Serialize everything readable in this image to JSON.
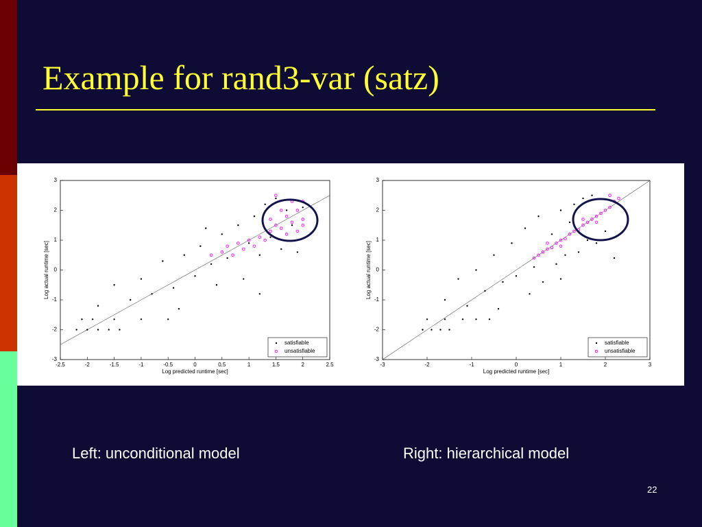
{
  "slide": {
    "title": "Example for rand3-var (satz)",
    "captions": [
      "Left: unconditional model",
      "Right: hierarchical model"
    ],
    "page_number": "22"
  },
  "chart_data": [
    {
      "type": "scatter",
      "xlabel": "Log predicted runtime [sec]",
      "ylabel": "Log actual runtime [sec]",
      "xlim": [
        -2.5,
        2.5
      ],
      "xticks": [
        -2.5,
        -2,
        -1.5,
        -1,
        -0.5,
        0,
        0.5,
        1,
        1.5,
        2,
        2.5
      ],
      "ylim": [
        -3,
        3
      ],
      "yticks": [
        -3,
        -2,
        -1,
        0,
        1,
        2,
        3
      ],
      "legend": "lower right",
      "series": [
        {
          "name": "satisfiable",
          "color": "#000000",
          "x": [
            -2.2,
            -2.0,
            -1.8,
            -1.6,
            -1.4,
            -2.1,
            -1.9,
            -1.5,
            -1.0,
            -0.5,
            -1.8,
            -1.5,
            -1.2,
            -1.0,
            -0.8,
            -0.6,
            -0.4,
            -0.2,
            0,
            0.1,
            0.3,
            0.4,
            0.5,
            0.6,
            0.8,
            0.9,
            1.0,
            1.1,
            1.2,
            1.3,
            1.4,
            1.5,
            1.6,
            1.7,
            1.8,
            1.9,
            2.0,
            1.2,
            -0.3,
            0.2
          ],
          "values": [
            -2,
            -2,
            -2,
            -2,
            -2,
            -1.65,
            -1.65,
            -1.65,
            -1.65,
            -1.65,
            -1.2,
            -0.5,
            -1.0,
            -0.3,
            -0.8,
            0.3,
            -0.6,
            0.5,
            -0.2,
            0.8,
            0.2,
            -0.5,
            1.2,
            0.4,
            1.5,
            -0.3,
            0.9,
            1.8,
            0.5,
            2.2,
            1.1,
            2.4,
            0.7,
            2.0,
            1.5,
            0.6,
            2.1,
            -0.8,
            -1.3,
            1.4
          ]
        },
        {
          "name": "unsatisfiable",
          "color": "#ff00ff",
          "x": [
            0.3,
            0.5,
            0.6,
            0.7,
            0.8,
            0.9,
            1.0,
            1.1,
            1.2,
            1.3,
            1.4,
            1.5,
            1.6,
            1.7,
            1.8,
            1.9,
            2.0,
            1.5,
            1.8,
            2.0,
            1.7,
            1.9,
            2.0,
            1.6,
            1.4
          ],
          "values": [
            0.5,
            0.6,
            0.8,
            0.5,
            0.9,
            0.7,
            1.0,
            0.8,
            1.1,
            1.0,
            1.3,
            1.5,
            1.4,
            1.8,
            1.6,
            2.0,
            1.7,
            2.5,
            2.3,
            2.3,
            1.2,
            1.3,
            1.5,
            2.0,
            1.7
          ]
        }
      ]
    },
    {
      "type": "scatter",
      "xlabel": "Log predicted runtime [sec]",
      "ylabel": "Log actual runtime [sec]",
      "xlim": [
        -3,
        3
      ],
      "xticks": [
        -3,
        -2,
        -1,
        0,
        1,
        2,
        3
      ],
      "ylim": [
        -3,
        3
      ],
      "yticks": [
        -3,
        -2,
        -1,
        0,
        1,
        2,
        3
      ],
      "legend": "lower right",
      "series": [
        {
          "name": "satisfiable",
          "color": "#000000",
          "x": [
            -2.1,
            -1.9,
            -1.7,
            -1.5,
            -2.0,
            -1.6,
            -1.2,
            -0.9,
            -0.6,
            -1.6,
            -1.3,
            -1.1,
            -0.9,
            -0.7,
            -0.5,
            -0.3,
            -0.1,
            0,
            0.2,
            0.4,
            0.5,
            0.6,
            0.8,
            0.9,
            1.0,
            1.1,
            1.2,
            1.3,
            1.4,
            1.5,
            1.6,
            1.7,
            1.8,
            2.0,
            2.2,
            1.0,
            -0.4,
            0.3
          ],
          "values": [
            -2,
            -2,
            -2,
            -2,
            -1.65,
            -1.65,
            -1.65,
            -1.65,
            -1.65,
            -1.0,
            -0.3,
            -1.2,
            0.0,
            -0.7,
            0.5,
            -0.4,
            0.9,
            -0.2,
            1.4,
            0.1,
            1.8,
            -0.4,
            1.2,
            0.2,
            2.0,
            0.5,
            1.6,
            2.2,
            0.6,
            2.4,
            1.0,
            2.5,
            0.9,
            1.3,
            0.4,
            -0.3,
            -1.3,
            -0.8
          ]
        },
        {
          "name": "unsatisfiable",
          "color": "#ff00ff",
          "x": [
            0.4,
            0.5,
            0.6,
            0.7,
            0.8,
            0.9,
            1.0,
            1.1,
            1.2,
            1.3,
            1.4,
            1.5,
            1.6,
            1.7,
            1.8,
            1.9,
            2.0,
            2.1,
            2.2,
            2.3,
            1.0,
            1.5,
            0.7,
            1.8,
            2.1
          ],
          "values": [
            0.4,
            0.5,
            0.6,
            0.7,
            0.75,
            0.9,
            1.0,
            1.05,
            1.2,
            1.3,
            1.35,
            1.5,
            1.6,
            1.7,
            1.8,
            1.9,
            2.0,
            2.1,
            2.3,
            2.4,
            0.8,
            1.7,
            0.9,
            1.6,
            2.5
          ]
        }
      ]
    }
  ]
}
